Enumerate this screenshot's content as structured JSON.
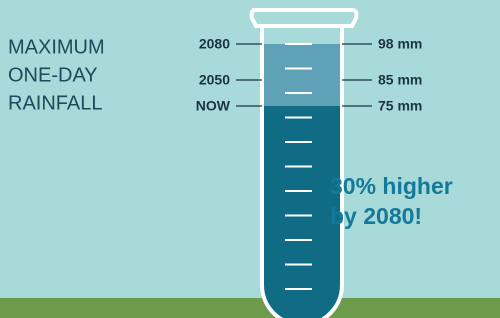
{
  "title": [
    "MAXIMUM",
    "ONE-DAY",
    "RAINFALL"
  ],
  "levels": [
    {
      "label": "2080",
      "amount": "98 mm"
    },
    {
      "label": "2050",
      "amount": "85 mm"
    },
    {
      "label": "NOW",
      "amount": "75 mm"
    }
  ],
  "callout": [
    "30% higher",
    "by 2080!"
  ]
}
